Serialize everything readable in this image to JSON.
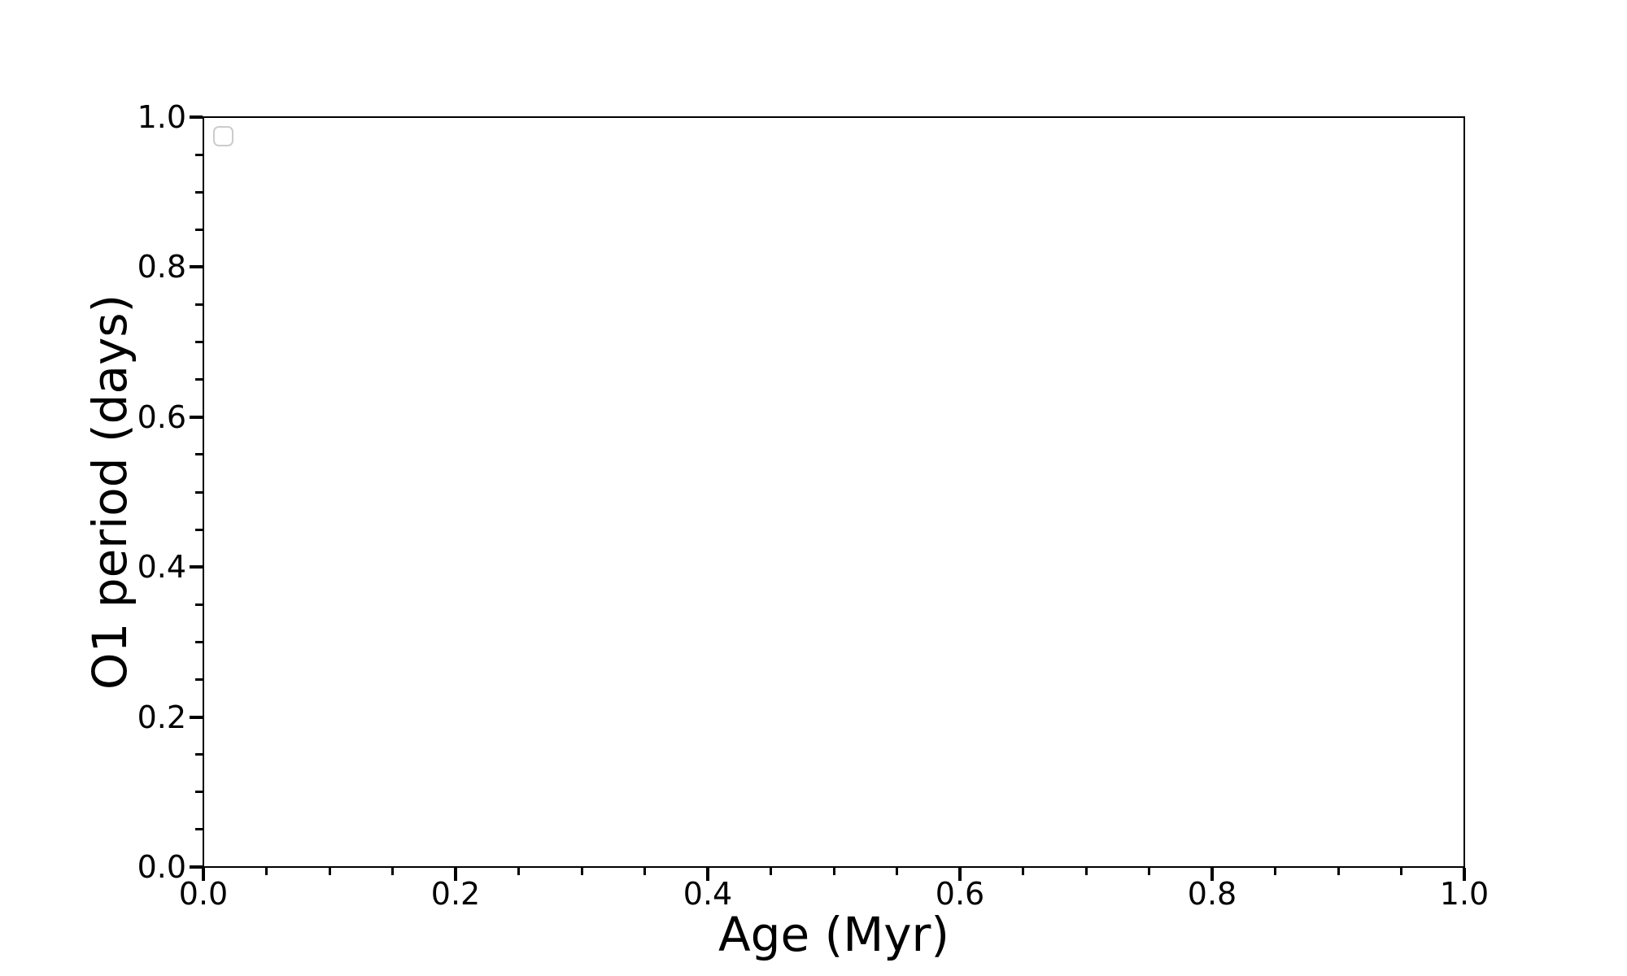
{
  "figure": {
    "background": "#ffffff"
  },
  "chart_data": {
    "type": "scatter",
    "title": "",
    "xlabel": "Age (Myr)",
    "ylabel": "O1 period (days)",
    "xlim": [
      0.0,
      1.0
    ],
    "ylim": [
      0.0,
      1.0
    ],
    "xtick_values": [
      0.0,
      0.2,
      0.4,
      0.6,
      0.8,
      1.0
    ],
    "xtick_labels": [
      "0.0",
      "0.2",
      "0.4",
      "0.6",
      "0.8",
      "1.0"
    ],
    "ytick_values": [
      0.0,
      0.2,
      0.4,
      0.6,
      0.8,
      1.0
    ],
    "ytick_labels": [
      "0.0",
      "0.2",
      "0.4",
      "0.6",
      "0.8",
      "1.0"
    ],
    "minor_tick_step": 0.05,
    "grid": false,
    "legend": {
      "visible": true,
      "location": "upper left",
      "entries": []
    },
    "series": []
  },
  "colors": {
    "axes": "#000000",
    "text": "#000000",
    "legend_border": "#cccccc",
    "background": "#ffffff"
  }
}
